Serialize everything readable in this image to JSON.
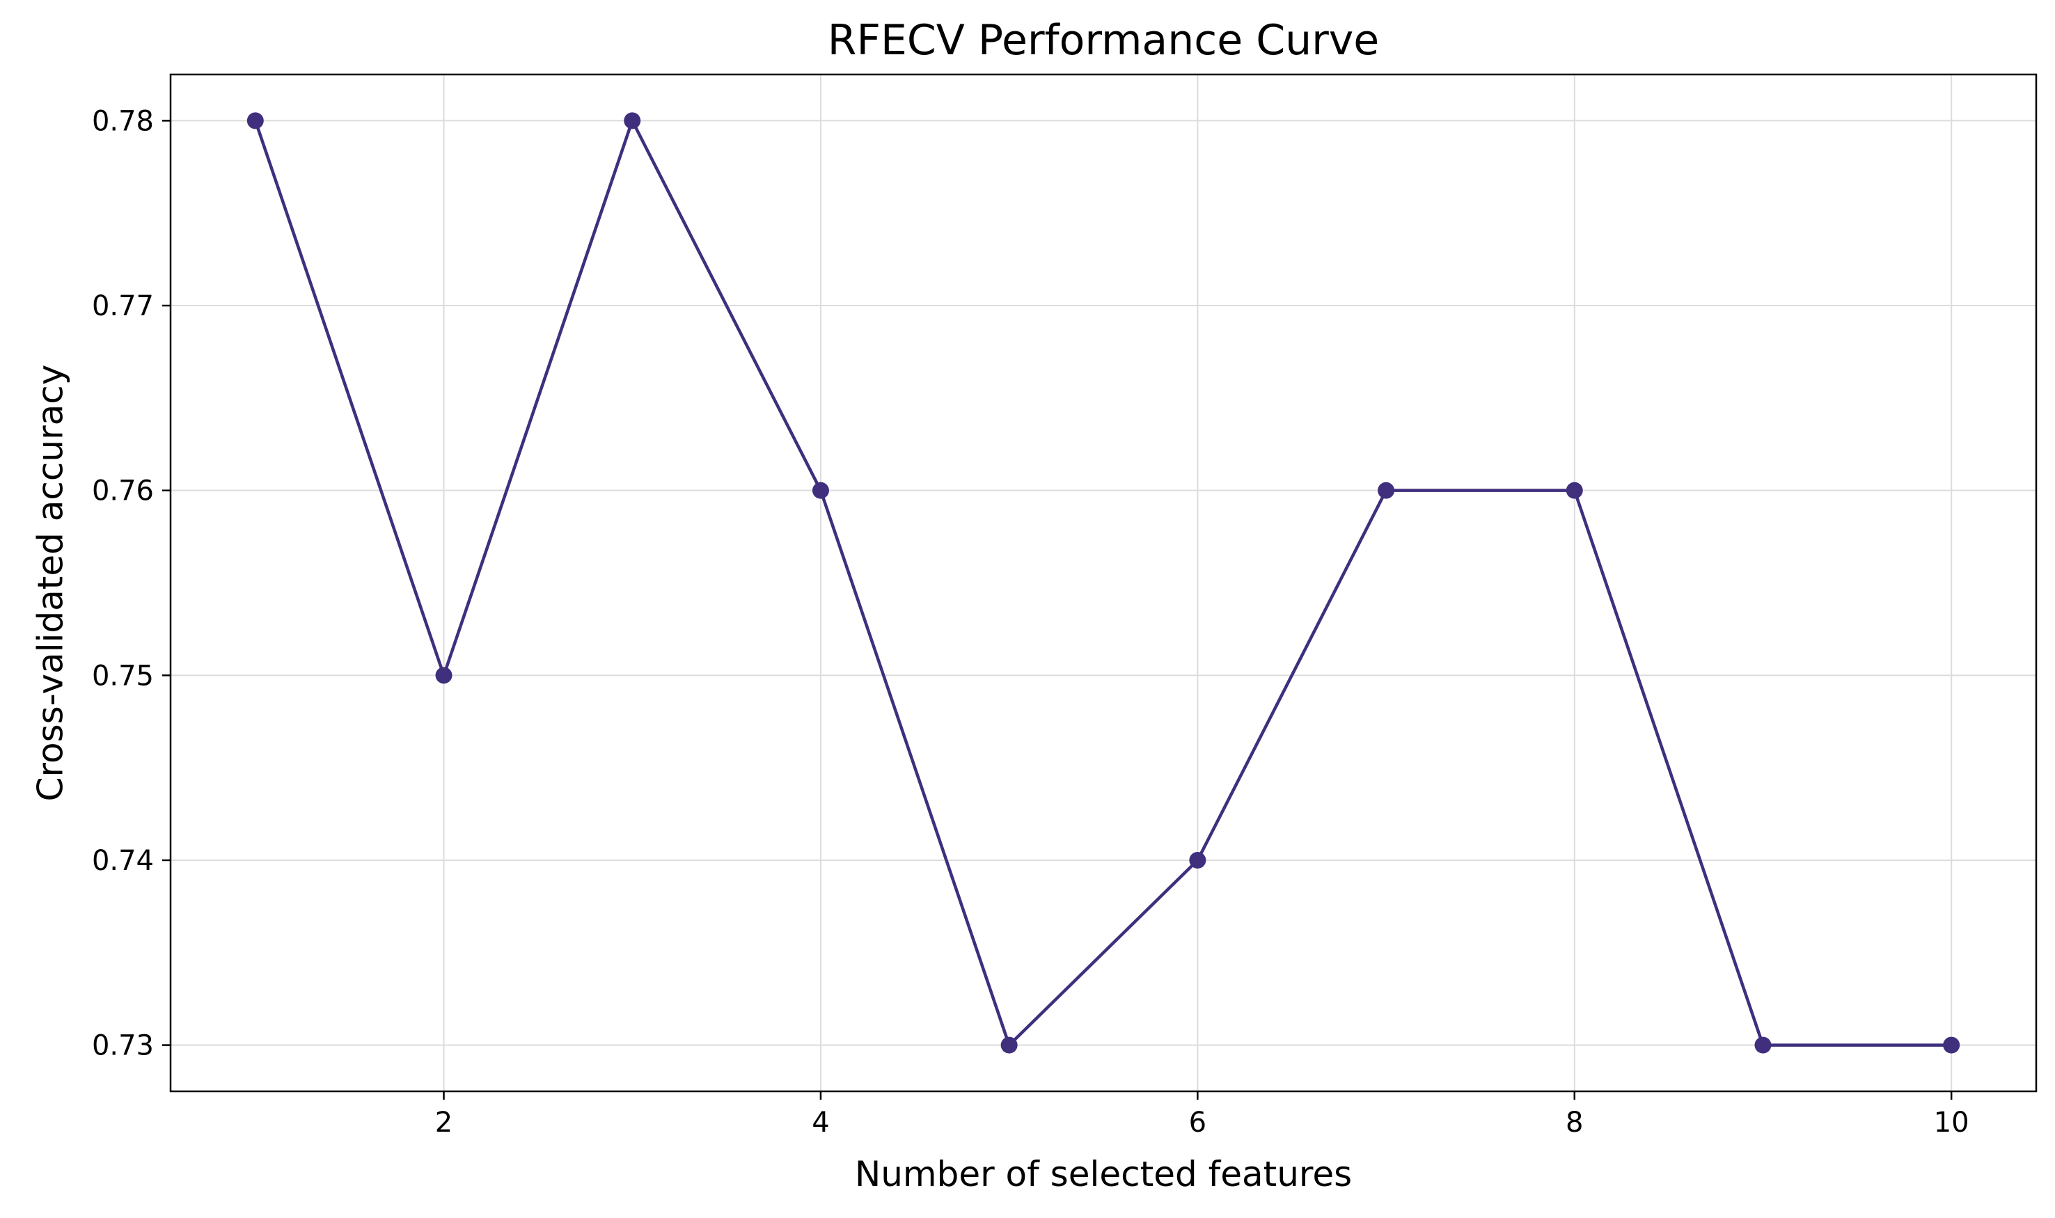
{
  "chart_data": {
    "type": "line",
    "title": "RFECV Performance Curve",
    "xlabel": "Number of selected features",
    "ylabel": "Cross-validated accuracy",
    "x": [
      1,
      2,
      3,
      4,
      5,
      6,
      7,
      8,
      9,
      10
    ],
    "series": [
      {
        "values": [
          0.78,
          0.75,
          0.78,
          0.76,
          0.73,
          0.74,
          0.76,
          0.76,
          0.73,
          0.73
        ],
        "color": "#3f2f7d",
        "marker": "circle"
      }
    ],
    "xlim": [
      0.55,
      10.45
    ],
    "ylim": [
      0.7275,
      0.7825
    ],
    "xticks": [
      2,
      4,
      6,
      8,
      10
    ],
    "xtick_labels": [
      "2",
      "4",
      "6",
      "8",
      "10"
    ],
    "yticks": [
      0.73,
      0.74,
      0.75,
      0.76,
      0.77,
      0.78
    ],
    "ytick_labels": [
      "0.73",
      "0.74",
      "0.75",
      "0.76",
      "0.77",
      "0.78"
    ],
    "grid": true,
    "legend": "none"
  }
}
